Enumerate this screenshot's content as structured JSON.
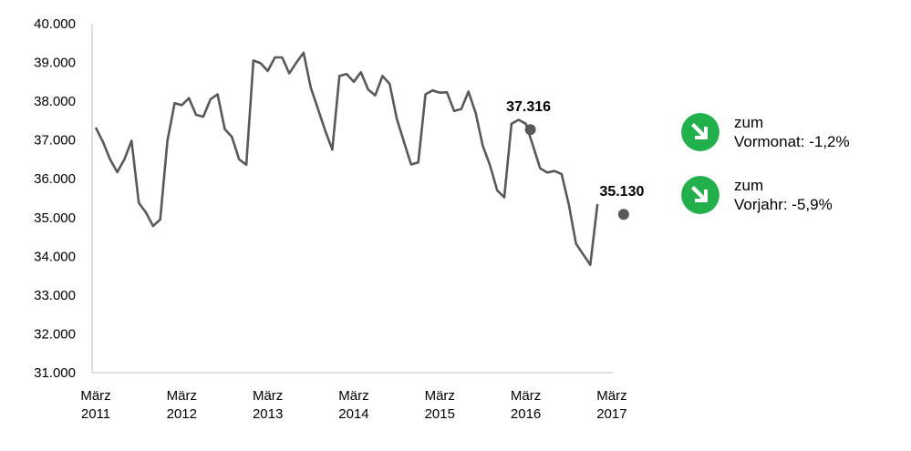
{
  "chart_data": {
    "type": "line",
    "title": "",
    "xlabel": "",
    "ylabel": "",
    "ylim": [
      31000,
      40000
    ],
    "y_ticks": [
      "31.000",
      "32.000",
      "33.000",
      "34.000",
      "35.000",
      "36.000",
      "37.000",
      "38.000",
      "39.000",
      "40.000"
    ],
    "x_ticks": [
      {
        "month": "März",
        "year": "2011"
      },
      {
        "month": "März",
        "year": "2012"
      },
      {
        "month": "März",
        "year": "2013"
      },
      {
        "month": "März",
        "year": "2014"
      },
      {
        "month": "März",
        "year": "2015"
      },
      {
        "month": "März",
        "year": "2016"
      },
      {
        "month": "März",
        "year": "2017"
      }
    ],
    "start_month": "2011-03",
    "grid": false,
    "line_color": "#595959",
    "values": [
      37320,
      36950,
      36500,
      36170,
      36500,
      36980,
      35380,
      35130,
      34780,
      34950,
      36980,
      37950,
      37900,
      38080,
      37650,
      37600,
      38050,
      38180,
      37280,
      37080,
      36500,
      36360,
      39050,
      38980,
      38780,
      39130,
      39130,
      38720,
      39000,
      39250,
      38350,
      37800,
      37250,
      36750,
      38650,
      38700,
      38500,
      38750,
      38300,
      38150,
      38650,
      38450,
      37550,
      36950,
      36370,
      36420,
      38180,
      38280,
      38220,
      38230,
      37750,
      37800,
      38250,
      37700,
      36850,
      36350,
      35700,
      35520,
      37420,
      37520,
      37420,
      36850,
      36270,
      36160,
      36200,
      36120,
      35330,
      34330,
      34050,
      33780,
      35350
    ],
    "markers": [
      {
        "label": "37.316",
        "value": 37316,
        "month": "2016-03"
      },
      {
        "label": "35.130",
        "value": 35130,
        "month": "2017-03"
      }
    ]
  },
  "legend": {
    "items": [
      {
        "line1": "zum",
        "line2": "Vormonat: -1,2%",
        "icon": "arrow-down-right-icon",
        "color": "#22b04c"
      },
      {
        "line1": "zum",
        "line2": "Vorjahr: -5,9%",
        "icon": "arrow-down-right-icon",
        "color": "#22b04c"
      }
    ]
  }
}
